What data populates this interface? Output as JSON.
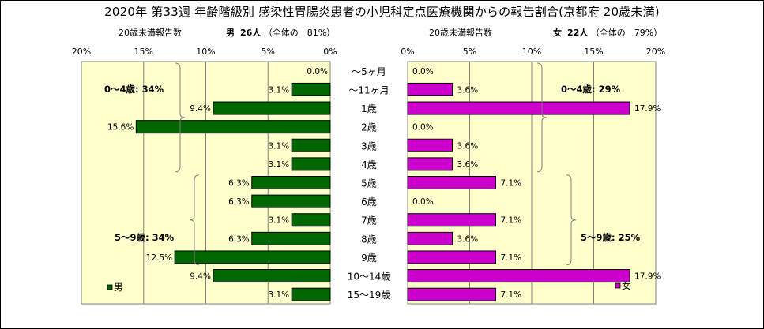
{
  "title": "2020年 第33週 年齢階級別 感染性胃腸炎患者の小児科定点医療機関からの報告割合(京都府 20歳未満)",
  "male_header": {
    "label": "20歳未満報告数",
    "sex": "男",
    "count": "26人",
    "share": "（全体の　81%）"
  },
  "female_header": {
    "label": "20歳未満報告数",
    "sex": "女",
    "count": "22人",
    "share": "（全体の　79%）"
  },
  "chart_data": {
    "type": "bar",
    "orientation": "horizontal",
    "categories": [
      "～5ヶ月",
      "～11ヶ月",
      "1歳",
      "2歳",
      "3歳",
      "4歳",
      "5歳",
      "6歳",
      "7歳",
      "8歳",
      "9歳",
      "10～14歳",
      "15～19歳"
    ],
    "series": [
      {
        "name": "男",
        "color": "#006600",
        "values": [
          0.0,
          3.1,
          9.4,
          15.6,
          3.1,
          3.1,
          6.3,
          6.3,
          3.1,
          6.3,
          12.5,
          9.4,
          3.1
        ],
        "labels": [
          "0.0%",
          "3.1%",
          "9.4%",
          "15.6%",
          "3.1%",
          "3.1%",
          "6.3%",
          "6.3%",
          "3.1%",
          "6.3%",
          "12.5%",
          "9.4%",
          "3.1%"
        ]
      },
      {
        "name": "女",
        "color": "#cc00cc",
        "values": [
          0.0,
          3.6,
          17.9,
          0.0,
          3.6,
          3.6,
          7.1,
          0.0,
          7.1,
          3.6,
          7.1,
          17.9,
          7.1
        ],
        "labels": [
          "0.0%",
          "3.6%",
          "17.9%",
          "0.0%",
          "3.6%",
          "3.6%",
          "7.1%",
          "0.0%",
          "7.1%",
          "3.6%",
          "7.1%",
          "17.9%",
          "7.1%"
        ]
      }
    ],
    "xlim": [
      0,
      20
    ],
    "ticks": [
      "0%",
      "5%",
      "10%",
      "15%",
      "20%"
    ],
    "male_ticks": [
      "20%",
      "15%",
      "10%",
      "5%",
      "0%"
    ],
    "plot_background": "#ffffcc",
    "annotations": {
      "male": [
        {
          "text": "0～4歳: 34%",
          "from": 0,
          "to": 5
        },
        {
          "text": "5～9歳: 34%",
          "from": 6,
          "to": 10
        }
      ],
      "female": [
        {
          "text": "0～4歳: 29%",
          "from": 0,
          "to": 5
        },
        {
          "text": "5～9歳: 25%",
          "from": 6,
          "to": 10
        }
      ]
    }
  }
}
